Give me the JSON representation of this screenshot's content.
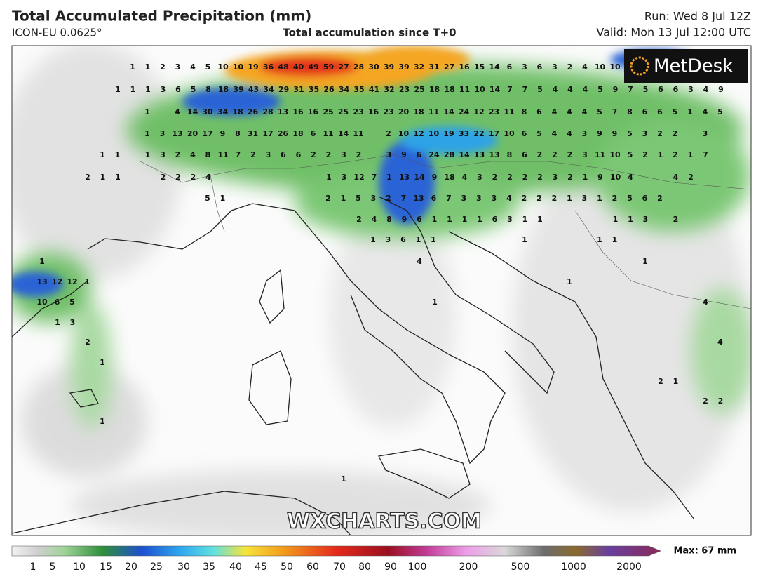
{
  "header": {
    "title": "Total Accumulated Precipitation (mm)",
    "model": "ICON-EU 0.0625°",
    "subtitle": "Total accumulation since T+0",
    "run": "Run: Wed 8 Jul 12Z",
    "valid": "Valid: Mon 13 Jul 12:00 UTC"
  },
  "logo": "MetDesk",
  "watermark": "WXCHARTS.COM",
  "grid_labels": [
    [
      1,
      1,
      2,
      3,
      4,
      5,
      10,
      10,
      19,
      36,
      48,
      40,
      49,
      59,
      27,
      28,
      30,
      39,
      39,
      32,
      31,
      27,
      16,
      15,
      14,
      6,
      3,
      6,
      3,
      2,
      4,
      10,
      10
    ],
    [
      1,
      1,
      1,
      3,
      6,
      5,
      8,
      18,
      39,
      43,
      34,
      29,
      31,
      35,
      26,
      34,
      35,
      41,
      32,
      23,
      25,
      18,
      18,
      11,
      10,
      14,
      7,
      7,
      5,
      4,
      4,
      4,
      5,
      9,
      7,
      5,
      6,
      6,
      3,
      4,
      9
    ],
    [
      1,
      null,
      4,
      14,
      30,
      34,
      18,
      26,
      28,
      13,
      16,
      16,
      25,
      25,
      23,
      16,
      23,
      20,
      18,
      11,
      14,
      24,
      12,
      23,
      11,
      8,
      6,
      4,
      4,
      4,
      5,
      7,
      8,
      6,
      6,
      5,
      1,
      4,
      5
    ],
    [
      1,
      3,
      13,
      20,
      17,
      9,
      8,
      31,
      17,
      26,
      18,
      6,
      11,
      14,
      11,
      null,
      2,
      10,
      12,
      10,
      19,
      33,
      22,
      17,
      10,
      6,
      5,
      4,
      4,
      3,
      9,
      9,
      5,
      3,
      2,
      2,
      null,
      3
    ],
    [
      1,
      1,
      null,
      1,
      3,
      2,
      4,
      8,
      11,
      7,
      2,
      3,
      6,
      6,
      2,
      2,
      3,
      2,
      null,
      3,
      9,
      6,
      24,
      28,
      14,
      13,
      13,
      8,
      6,
      2,
      2,
      2,
      3,
      11,
      10,
      5,
      2,
      1,
      2,
      1,
      7
    ],
    [
      2,
      1,
      1,
      null,
      null,
      2,
      2,
      2,
      4,
      null,
      null,
      null,
      null,
      null,
      null,
      null,
      1,
      3,
      12,
      7,
      1,
      13,
      14,
      9,
      18,
      4,
      3,
      2,
      2,
      2,
      2,
      3,
      2,
      1,
      9,
      10,
      4,
      null,
      null,
      4,
      2
    ],
    [
      5,
      1,
      null,
      null,
      null,
      null,
      null,
      null,
      2,
      1,
      5,
      3,
      2,
      7,
      13,
      6,
      7,
      3,
      3,
      3,
      4,
      2,
      2,
      2,
      1,
      3,
      1,
      2,
      5,
      6,
      2
    ],
    [
      2,
      4,
      8,
      9,
      6,
      1,
      1,
      1,
      1,
      6,
      3,
      1,
      1,
      null,
      null,
      null,
      null,
      1,
      1,
      3,
      null,
      2
    ],
    [
      1,
      3,
      6,
      1,
      1
    ],
    [
      1
    ],
    [
      1,
      1
    ],
    [
      4
    ],
    [
      1
    ],
    [
      1
    ],
    [
      13,
      12,
      12,
      1
    ],
    [
      10,
      6,
      5
    ],
    [
      1
    ],
    [
      1
    ],
    [
      4
    ],
    [
      1,
      3
    ],
    [
      2
    ],
    [
      1
    ],
    [
      4
    ],
    [
      2,
      1
    ],
    [
      2,
      2
    ],
    [
      1
    ],
    [
      1
    ]
  ],
  "colorbar": {
    "ticks": [
      1,
      5,
      10,
      15,
      20,
      25,
      30,
      35,
      40,
      45,
      50,
      60,
      70,
      80,
      90,
      100,
      200,
      500,
      1000,
      2000
    ],
    "max_label": "Max: 67 mm"
  }
}
